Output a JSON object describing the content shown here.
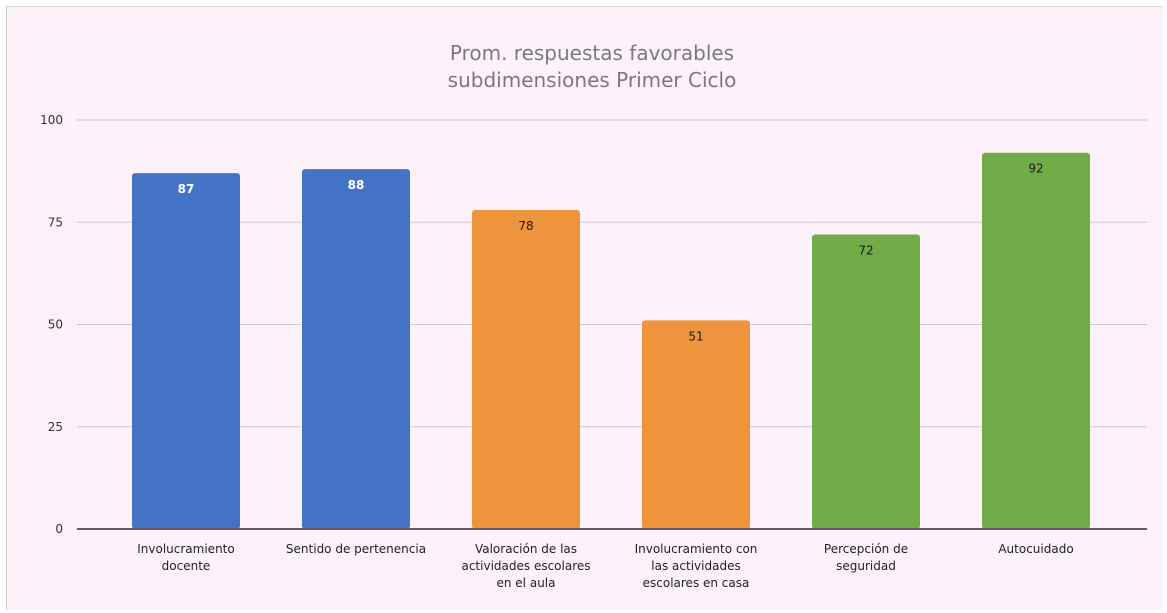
{
  "chart_data": {
    "type": "bar",
    "title": [
      "Prom. respuestas favorables",
      "subdimensiones Primer Ciclo"
    ],
    "xlabel": "",
    "ylabel": "",
    "ylim": [
      0,
      100
    ],
    "yticks": [
      "0",
      "25",
      "50",
      "75",
      "100"
    ],
    "grid": true,
    "categories": [
      [
        "Involucramiento",
        "docente"
      ],
      [
        "Sentido de pertenencia"
      ],
      [
        "Valoración de las",
        "actividades escolares",
        "en el aula"
      ],
      [
        "Involucramiento con",
        "las actividades",
        "escolares en casa"
      ],
      [
        "Percepción de",
        "seguridad"
      ],
      [
        "Autocuidado"
      ]
    ],
    "values": [
      87,
      88,
      78,
      51,
      72,
      92
    ],
    "data_labels": [
      "87",
      "88",
      "78",
      "51",
      "72",
      "92"
    ],
    "colors": [
      "#4472c4",
      "#4472c4",
      "#ed943d",
      "#ed943d",
      "#72ac48",
      "#72ac48"
    ],
    "label_colors": [
      "#ffffff",
      "#ffffff",
      "#1a1a1a",
      "#1a1a1a",
      "#1a1a1a",
      "#1a1a1a"
    ],
    "gridline_color": "#c8c8d0",
    "axis_color": "#606060"
  }
}
